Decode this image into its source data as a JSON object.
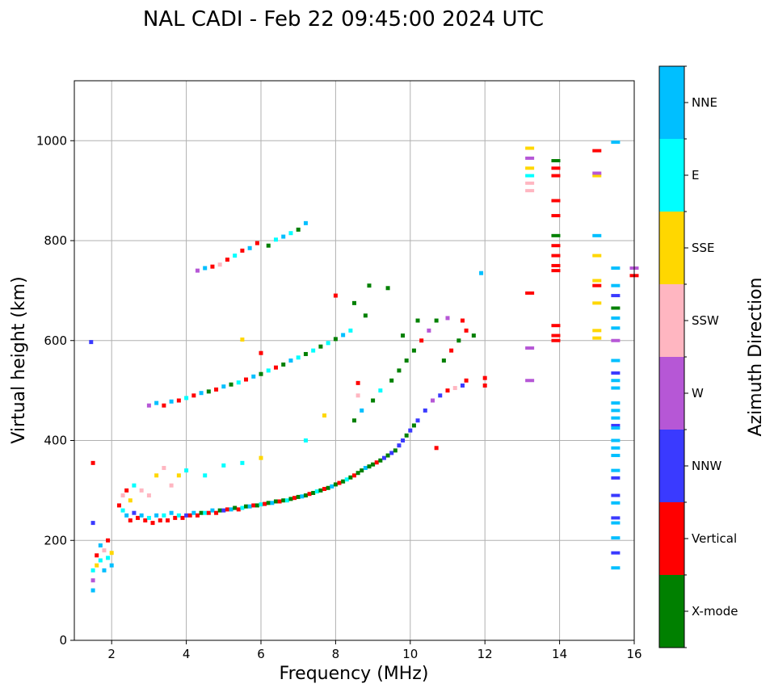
{
  "chart_data": {
    "type": "scatter",
    "title": "NAL CADI - Feb 22 09:45:00 2024 UTC",
    "xlabel": "Frequency (MHz)",
    "ylabel": "Virtual height (km)",
    "xlim": [
      1,
      16
    ],
    "ylim": [
      0,
      1120
    ],
    "xticks": [
      2,
      4,
      6,
      8,
      10,
      12,
      14,
      16
    ],
    "yticks": [
      0,
      200,
      400,
      600,
      800,
      1000
    ],
    "grid": true,
    "colorbar": {
      "label": "Azimuth Direction",
      "categories": [
        {
          "name": "X-mode",
          "color": "#008000"
        },
        {
          "name": "Vertical",
          "color": "#ff0000"
        },
        {
          "name": "NNW",
          "color": "#3a3aff"
        },
        {
          "name": "W",
          "color": "#b657d6"
        },
        {
          "name": "SSW",
          "color": "#ffb6c1"
        },
        {
          "name": "SSE",
          "color": "#ffd700"
        },
        {
          "name": "E",
          "color": "#00ffff"
        },
        {
          "name": "NNE",
          "color": "#00bfff"
        }
      ]
    },
    "points": [
      [
        1.5,
        100,
        "NNE"
      ],
      [
        1.5,
        120,
        "W"
      ],
      [
        1.5,
        140,
        "E"
      ],
      [
        1.6,
        150,
        "SSE"
      ],
      [
        1.6,
        170,
        "Vertical"
      ],
      [
        1.7,
        190,
        "NNE"
      ],
      [
        1.7,
        160,
        "E"
      ],
      [
        1.8,
        180,
        "SSW"
      ],
      [
        1.8,
        140,
        "NNE"
      ],
      [
        1.9,
        200,
        "Vertical"
      ],
      [
        1.9,
        165,
        "E"
      ],
      [
        2.0,
        150,
        "NNE"
      ],
      [
        2.0,
        175,
        "SSE"
      ],
      [
        1.5,
        355,
        "Vertical"
      ],
      [
        1.5,
        235,
        "NNW"
      ],
      [
        1.45,
        597,
        "NNW"
      ],
      [
        2.2,
        270,
        "Vertical"
      ],
      [
        2.3,
        260,
        "E"
      ],
      [
        2.3,
        290,
        "SSW"
      ],
      [
        2.4,
        250,
        "NNE"
      ],
      [
        2.4,
        300,
        "Vertical"
      ],
      [
        2.5,
        240,
        "Vertical"
      ],
      [
        2.5,
        280,
        "SSE"
      ],
      [
        2.6,
        255,
        "NNW"
      ],
      [
        2.6,
        310,
        "E"
      ],
      [
        2.7,
        245,
        "Vertical"
      ],
      [
        2.8,
        250,
        "NNE"
      ],
      [
        2.8,
        300,
        "SSW"
      ],
      [
        2.9,
        240,
        "Vertical"
      ],
      [
        3.0,
        245,
        "E"
      ],
      [
        3.0,
        290,
        "SSW"
      ],
      [
        3.1,
        235,
        "Vertical"
      ],
      [
        3.2,
        250,
        "NNE"
      ],
      [
        3.2,
        330,
        "SSE"
      ],
      [
        3.3,
        240,
        "Vertical"
      ],
      [
        3.4,
        250,
        "E"
      ],
      [
        3.4,
        345,
        "SSW"
      ],
      [
        3.5,
        240,
        "Vertical"
      ],
      [
        3.6,
        255,
        "NNE"
      ],
      [
        3.6,
        310,
        "SSW"
      ],
      [
        3.7,
        245,
        "Vertical"
      ],
      [
        3.8,
        250,
        "E"
      ],
      [
        3.8,
        330,
        "SSE"
      ],
      [
        3.9,
        245,
        "Vertical"
      ],
      [
        4.0,
        250,
        "NNW"
      ],
      [
        4.0,
        340,
        "E"
      ],
      [
        4.1,
        250,
        "Vertical"
      ],
      [
        4.2,
        255,
        "NNE"
      ],
      [
        4.3,
        250,
        "Vertical"
      ],
      [
        4.4,
        255,
        "X-mode"
      ],
      [
        4.5,
        255,
        "E"
      ],
      [
        4.5,
        330,
        "E"
      ],
      [
        4.6,
        255,
        "Vertical"
      ],
      [
        4.7,
        260,
        "NNE"
      ],
      [
        4.8,
        255,
        "Vertical"
      ],
      [
        4.9,
        260,
        "X-mode"
      ],
      [
        5.0,
        260,
        "NNW"
      ],
      [
        5.0,
        350,
        "E"
      ],
      [
        5.1,
        262,
        "Vertical"
      ],
      [
        5.2,
        262,
        "NNE"
      ],
      [
        5.3,
        265,
        "X-mode"
      ],
      [
        5.4,
        262,
        "Vertical"
      ],
      [
        5.5,
        265,
        "E"
      ],
      [
        5.5,
        355,
        "E"
      ],
      [
        5.6,
        268,
        "X-mode"
      ],
      [
        5.7,
        268,
        "NNE"
      ],
      [
        5.8,
        270,
        "Vertical"
      ],
      [
        5.9,
        270,
        "X-mode"
      ],
      [
        6.0,
        272,
        "E"
      ],
      [
        6.0,
        365,
        "SSE"
      ],
      [
        6.1,
        273,
        "Vertical"
      ],
      [
        6.2,
        275,
        "X-mode"
      ],
      [
        6.3,
        275,
        "NNE"
      ],
      [
        6.4,
        278,
        "X-mode"
      ],
      [
        6.5,
        278,
        "Vertical"
      ],
      [
        6.6,
        280,
        "X-mode"
      ],
      [
        6.7,
        280,
        "E"
      ],
      [
        6.8,
        283,
        "X-mode"
      ],
      [
        6.9,
        285,
        "Vertical"
      ],
      [
        7.0,
        287,
        "X-mode"
      ],
      [
        7.1,
        288,
        "NNE"
      ],
      [
        7.2,
        290,
        "X-mode"
      ],
      [
        7.3,
        293,
        "Vertical"
      ],
      [
        7.4,
        295,
        "X-mode"
      ],
      [
        7.5,
        298,
        "E"
      ],
      [
        7.6,
        300,
        "X-mode"
      ],
      [
        7.7,
        303,
        "Vertical"
      ],
      [
        7.8,
        305,
        "X-mode"
      ],
      [
        7.9,
        308,
        "NNE"
      ],
      [
        8.0,
        312,
        "X-mode"
      ],
      [
        8.1,
        315,
        "Vertical"
      ],
      [
        8.2,
        318,
        "X-mode"
      ],
      [
        8.3,
        322,
        "E"
      ],
      [
        8.4,
        326,
        "X-mode"
      ],
      [
        8.5,
        330,
        "Vertical"
      ],
      [
        8.6,
        335,
        "X-mode"
      ],
      [
        8.7,
        340,
        "X-mode"
      ],
      [
        8.8,
        345,
        "NNE"
      ],
      [
        8.9,
        348,
        "X-mode"
      ],
      [
        9.0,
        352,
        "X-mode"
      ],
      [
        9.1,
        356,
        "Vertical"
      ],
      [
        9.2,
        360,
        "X-mode"
      ],
      [
        9.3,
        365,
        "NNW"
      ],
      [
        9.4,
        370,
        "X-mode"
      ],
      [
        9.5,
        375,
        "NNW"
      ],
      [
        9.6,
        380,
        "X-mode"
      ],
      [
        9.7,
        390,
        "NNW"
      ],
      [
        9.8,
        400,
        "NNW"
      ],
      [
        9.9,
        410,
        "X-mode"
      ],
      [
        10.0,
        420,
        "NNW"
      ],
      [
        10.1,
        430,
        "X-mode"
      ],
      [
        10.2,
        440,
        "NNW"
      ],
      [
        10.4,
        460,
        "NNW"
      ],
      [
        10.6,
        480,
        "W"
      ],
      [
        10.8,
        490,
        "NNW"
      ],
      [
        11.0,
        500,
        "Vertical"
      ],
      [
        11.2,
        505,
        "SSW"
      ],
      [
        11.4,
        510,
        "NNW"
      ],
      [
        11.5,
        520,
        "Vertical"
      ],
      [
        8.5,
        440,
        "X-mode"
      ],
      [
        8.7,
        460,
        "NNE"
      ],
      [
        9.0,
        480,
        "X-mode"
      ],
      [
        9.2,
        500,
        "E"
      ],
      [
        9.5,
        520,
        "X-mode"
      ],
      [
        9.7,
        540,
        "X-mode"
      ],
      [
        9.9,
        560,
        "X-mode"
      ],
      [
        10.1,
        580,
        "X-mode"
      ],
      [
        10.3,
        600,
        "Vertical"
      ],
      [
        10.5,
        620,
        "W"
      ],
      [
        10.7,
        640,
        "X-mode"
      ],
      [
        10.9,
        560,
        "X-mode"
      ],
      [
        11.1,
        580,
        "Vertical"
      ],
      [
        11.3,
        600,
        "X-mode"
      ],
      [
        11.5,
        620,
        "Vertical"
      ],
      [
        11.7,
        610,
        "X-mode"
      ],
      [
        10.2,
        640,
        "X-mode"
      ],
      [
        9.8,
        610,
        "X-mode"
      ],
      [
        8.8,
        650,
        "X-mode"
      ],
      [
        8.5,
        675,
        "X-mode"
      ],
      [
        8.0,
        690,
        "Vertical"
      ],
      [
        8.9,
        710,
        "X-mode"
      ],
      [
        9.4,
        705,
        "X-mode"
      ],
      [
        11.9,
        735,
        "NNE"
      ],
      [
        12.0,
        525,
        "Vertical"
      ],
      [
        12.0,
        510,
        "Vertical"
      ],
      [
        11.0,
        645,
        "W"
      ],
      [
        11.4,
        640,
        "Vertical"
      ],
      [
        10.7,
        385,
        "Vertical"
      ],
      [
        8.6,
        490,
        "SSW"
      ],
      [
        8.6,
        515,
        "Vertical"
      ],
      [
        7.7,
        450,
        "SSE"
      ],
      [
        7.2,
        400,
        "E"
      ],
      [
        3.0,
        470,
        "W"
      ],
      [
        3.2,
        475,
        "NNE"
      ],
      [
        3.4,
        470,
        "Vertical"
      ],
      [
        3.6,
        478,
        "NNE"
      ],
      [
        3.8,
        480,
        "Vertical"
      ],
      [
        4.0,
        485,
        "E"
      ],
      [
        4.2,
        490,
        "Vertical"
      ],
      [
        4.4,
        495,
        "NNE"
      ],
      [
        4.6,
        498,
        "X-mode"
      ],
      [
        4.8,
        502,
        "Vertical"
      ],
      [
        5.0,
        508,
        "NNE"
      ],
      [
        5.2,
        512,
        "X-mode"
      ],
      [
        5.4,
        516,
        "E"
      ],
      [
        5.6,
        522,
        "Vertical"
      ],
      [
        5.8,
        528,
        "NNE"
      ],
      [
        6.0,
        533,
        "X-mode"
      ],
      [
        6.2,
        540,
        "E"
      ],
      [
        6.4,
        546,
        "Vertical"
      ],
      [
        6.6,
        552,
        "X-mode"
      ],
      [
        6.8,
        560,
        "NNE"
      ],
      [
        7.0,
        566,
        "E"
      ],
      [
        7.2,
        573,
        "X-mode"
      ],
      [
        7.4,
        580,
        "E"
      ],
      [
        7.6,
        588,
        "X-mode"
      ],
      [
        7.8,
        595,
        "E"
      ],
      [
        8.0,
        603,
        "X-mode"
      ],
      [
        8.2,
        611,
        "NNE"
      ],
      [
        8.4,
        620,
        "E"
      ],
      [
        5.5,
        602,
        "SSE"
      ],
      [
        6.0,
        575,
        "Vertical"
      ],
      [
        4.3,
        740,
        "W"
      ],
      [
        4.5,
        745,
        "NNE"
      ],
      [
        4.7,
        748,
        "Vertical"
      ],
      [
        4.9,
        752,
        "SSW"
      ],
      [
        5.1,
        762,
        "Vertical"
      ],
      [
        5.3,
        770,
        "E"
      ],
      [
        5.5,
        780,
        "Vertical"
      ],
      [
        5.7,
        785,
        "NNE"
      ],
      [
        5.9,
        795,
        "Vertical"
      ],
      [
        6.2,
        790,
        "X-mode"
      ],
      [
        6.4,
        802,
        "E"
      ],
      [
        6.6,
        808,
        "NNE"
      ],
      [
        6.8,
        815,
        "E"
      ],
      [
        7.0,
        822,
        "X-mode"
      ],
      [
        7.2,
        835,
        "NNE"
      ],
      [
        13.2,
        985,
        "SSE"
      ],
      [
        13.2,
        965,
        "W"
      ],
      [
        13.2,
        945,
        "SSE"
      ],
      [
        13.2,
        930,
        "E"
      ],
      [
        13.2,
        915,
        "SSW"
      ],
      [
        13.2,
        900,
        "SSW"
      ],
      [
        13.2,
        695,
        "Vertical"
      ],
      [
        13.2,
        585,
        "W"
      ],
      [
        13.2,
        520,
        "W"
      ],
      [
        13.9,
        960,
        "X-mode"
      ],
      [
        13.9,
        945,
        "Vertical"
      ],
      [
        13.9,
        930,
        "Vertical"
      ],
      [
        13.9,
        880,
        "Vertical"
      ],
      [
        13.9,
        850,
        "Vertical"
      ],
      [
        13.9,
        810,
        "X-mode"
      ],
      [
        13.9,
        790,
        "Vertical"
      ],
      [
        13.9,
        770,
        "Vertical"
      ],
      [
        13.9,
        750,
        "Vertical"
      ],
      [
        13.9,
        740,
        "Vertical"
      ],
      [
        13.9,
        630,
        "Vertical"
      ],
      [
        13.9,
        610,
        "Vertical"
      ],
      [
        13.9,
        600,
        "Vertical"
      ],
      [
        15.0,
        980,
        "Vertical"
      ],
      [
        15.0,
        930,
        "SSE"
      ],
      [
        15.0,
        935,
        "W"
      ],
      [
        15.0,
        810,
        "NNE"
      ],
      [
        15.0,
        770,
        "SSE"
      ],
      [
        15.0,
        720,
        "SSE"
      ],
      [
        15.0,
        710,
        "Vertical"
      ],
      [
        15.0,
        675,
        "SSE"
      ],
      [
        15.0,
        620,
        "SSE"
      ],
      [
        15.0,
        605,
        "SSE"
      ],
      [
        15.5,
        997,
        "NNE"
      ],
      [
        15.5,
        745,
        "NNE"
      ],
      [
        15.5,
        710,
        "NNE"
      ],
      [
        15.5,
        690,
        "NNW"
      ],
      [
        15.5,
        665,
        "X-mode"
      ],
      [
        15.5,
        645,
        "NNE"
      ],
      [
        15.5,
        625,
        "NNE"
      ],
      [
        15.5,
        600,
        "W"
      ],
      [
        15.5,
        560,
        "NNE"
      ],
      [
        15.5,
        535,
        "NNW"
      ],
      [
        15.5,
        520,
        "NNE"
      ],
      [
        15.5,
        505,
        "NNE"
      ],
      [
        15.5,
        475,
        "NNE"
      ],
      [
        15.5,
        460,
        "NNE"
      ],
      [
        15.5,
        445,
        "NNE"
      ],
      [
        15.5,
        430,
        "NNW"
      ],
      [
        15.5,
        425,
        "NNE"
      ],
      [
        15.5,
        400,
        "NNE"
      ],
      [
        15.5,
        385,
        "NNE"
      ],
      [
        15.5,
        370,
        "NNE"
      ],
      [
        15.5,
        340,
        "NNE"
      ],
      [
        15.5,
        325,
        "NNW"
      ],
      [
        15.5,
        290,
        "NNW"
      ],
      [
        15.5,
        275,
        "NNE"
      ],
      [
        15.5,
        245,
        "NNW"
      ],
      [
        15.5,
        235,
        "NNE"
      ],
      [
        15.5,
        205,
        "NNE"
      ],
      [
        15.5,
        175,
        "NNW"
      ],
      [
        15.5,
        145,
        "NNE"
      ],
      [
        16.0,
        745,
        "W"
      ],
      [
        16.0,
        730,
        "Vertical"
      ]
    ]
  }
}
